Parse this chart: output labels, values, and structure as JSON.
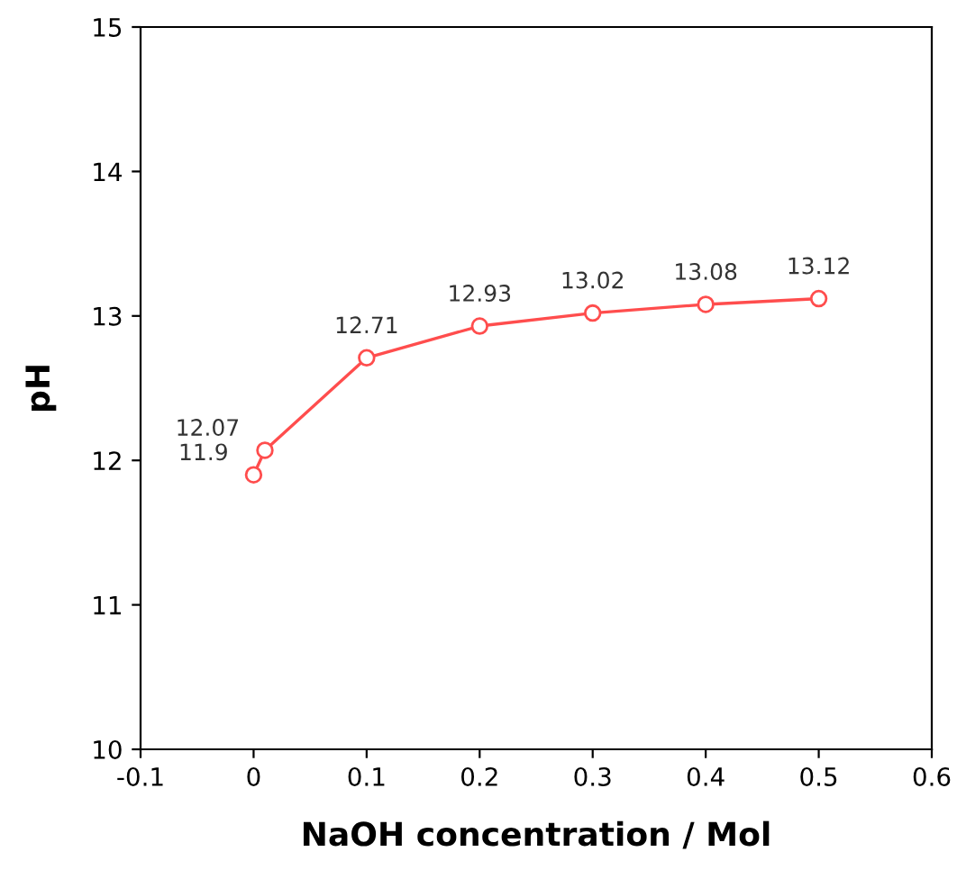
{
  "chart_data": {
    "type": "line",
    "xlabel": "NaOH concentration / Mol",
    "ylabel": "pH",
    "x": [
      0,
      0.01,
      0.1,
      0.2,
      0.3,
      0.4,
      0.5
    ],
    "series": [
      {
        "color": "#ff4d4d",
        "values": [
          11.9,
          12.07,
          12.71,
          12.93,
          13.02,
          13.08,
          13.12
        ]
      }
    ],
    "xlim": [
      -0.1,
      0.6
    ],
    "xticks": [
      -0.1,
      0,
      0.1,
      0.2,
      0.3,
      0.4,
      0.5,
      0.6
    ],
    "ylim": [
      10,
      15
    ],
    "yticks": [
      10,
      11,
      12,
      13,
      14,
      15
    ],
    "data_labels": true,
    "marker": "circle",
    "line_style": "solid",
    "grid": false,
    "legend": false
  }
}
